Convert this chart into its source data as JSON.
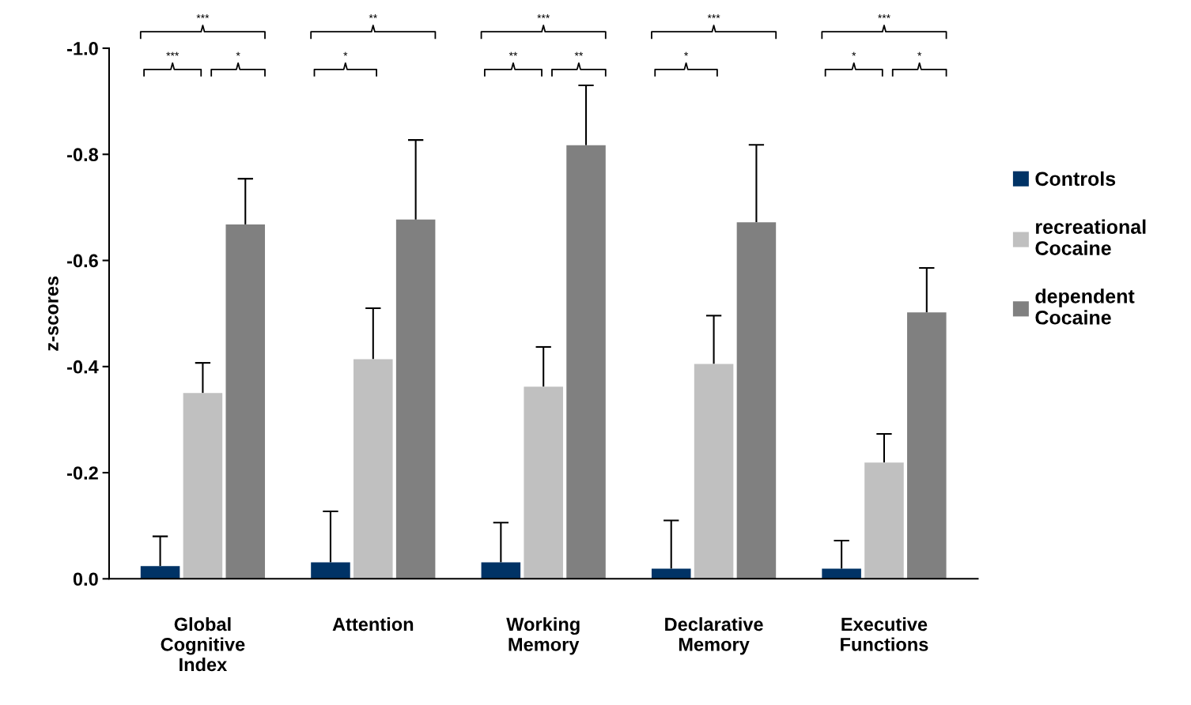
{
  "chart_data": {
    "type": "bar",
    "ylabel": "z-scores",
    "categories": [
      "Global\nCognitive\nIndex",
      "Attention",
      "Working\nMemory",
      "Declarative\nMemory",
      "Executive\nFunctions"
    ],
    "series": [
      {
        "name": "Controls",
        "color": "#003366",
        "values": [
          -0.024,
          -0.031,
          -0.031,
          -0.019,
          -0.019
        ],
        "errors": [
          [
            -0.08,
            -0.024
          ],
          [
            -0.127,
            -0.031
          ],
          [
            -0.106,
            -0.031
          ],
          [
            -0.11,
            -0.019
          ],
          [
            -0.072,
            -0.019
          ]
        ]
      },
      {
        "name": "recreational\nCocaine",
        "color": "#c0c0c0",
        "values": [
          -0.35,
          -0.414,
          -0.362,
          -0.405,
          -0.219
        ],
        "errors": [
          [
            -0.407,
            -0.35
          ],
          [
            -0.51,
            -0.414
          ],
          [
            -0.437,
            -0.362
          ],
          [
            -0.496,
            -0.405
          ],
          [
            -0.273,
            -0.219
          ]
        ]
      },
      {
        "name": "dependent\nCocaine",
        "color": "#808080",
        "values": [
          -0.668,
          -0.677,
          -0.817,
          -0.672,
          -0.502
        ],
        "errors": [
          [
            -0.754,
            -0.668
          ],
          [
            -0.827,
            -0.677
          ],
          [
            -0.93,
            -0.817
          ],
          [
            -0.818,
            -0.672
          ],
          [
            -0.586,
            -0.502
          ]
        ]
      }
    ],
    "ylim": [
      0.0,
      -1.0
    ],
    "yticks": [
      {
        "value": 0.0,
        "label": "0.0"
      },
      -0.2,
      -0.4,
      -0.6,
      -0.8,
      {
        "value": -1.0,
        "label": "-1.0"
      }
    ],
    "grid": false,
    "legend": "right",
    "annotations": [
      "***",
      "**",
      "***",
      "***",
      "***",
      "***",
      "*",
      "*",
      "**",
      "**",
      "*",
      "*",
      "*"
    ]
  }
}
